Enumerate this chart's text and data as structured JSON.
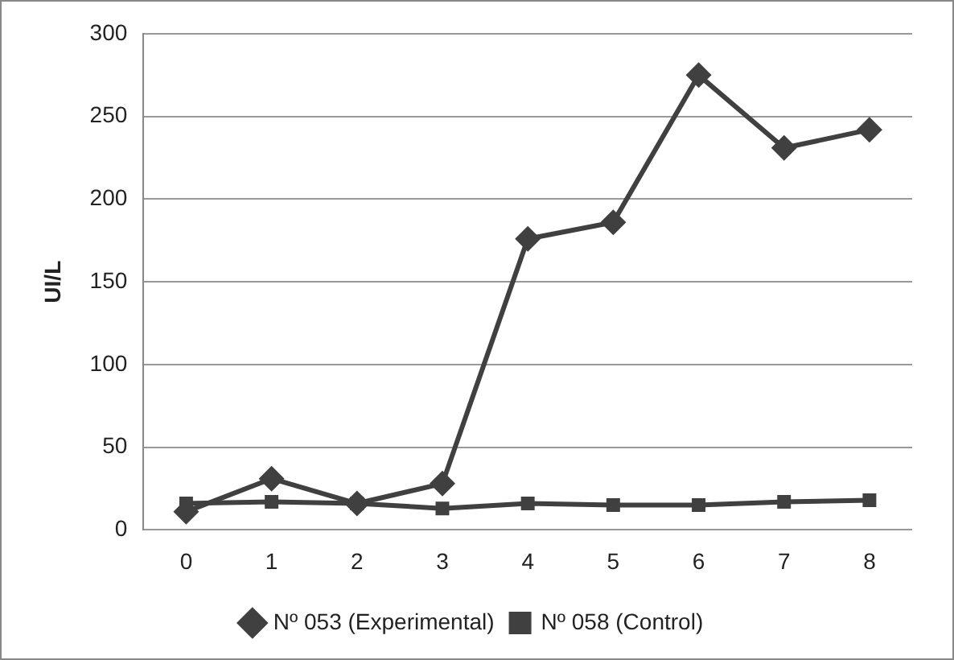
{
  "chart_data": {
    "type": "line",
    "ylabel": "UI/L",
    "categories": [
      "0",
      "1",
      "2",
      "3",
      "4",
      "5",
      "6",
      "7",
      "8"
    ],
    "series": [
      {
        "name": "Nº 053 (Experimental)",
        "color": "#404040",
        "marker": "diamond",
        "values": [
          11,
          31,
          16,
          28,
          176,
          186,
          275,
          231,
          242
        ]
      },
      {
        "name": "Nº 058 (Control)",
        "color": "#404040",
        "marker": "square",
        "values": [
          16,
          17,
          16,
          13,
          16,
          15,
          15,
          17,
          18
        ]
      }
    ],
    "ylim": [
      0,
      300
    ],
    "yticks": [
      0,
      50,
      100,
      150,
      200,
      250,
      300
    ],
    "grid": "y",
    "legend": "bottom",
    "line_style": "solid"
  }
}
